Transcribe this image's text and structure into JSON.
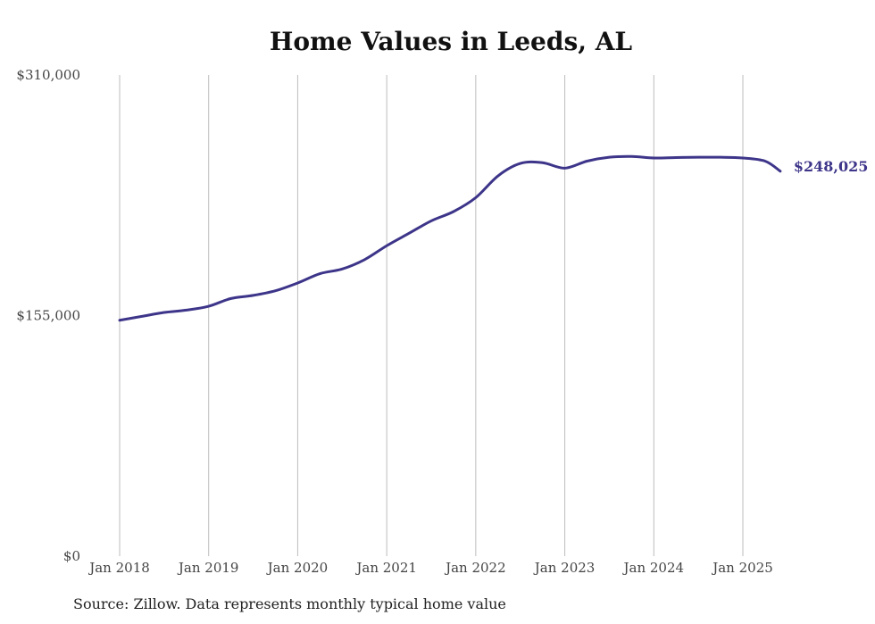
{
  "chart_data": {
    "type": "line",
    "title": "Home Values in Leeds, AL",
    "source": "Source: Zillow. Data represents monthly typical home value",
    "y_ticks": [
      "$0",
      "$155,000",
      "$310,000"
    ],
    "y_tick_values": [
      0,
      155000,
      310000
    ],
    "ylim": [
      0,
      310000
    ],
    "x_ticks": [
      "Jan 2018",
      "Jan 2019",
      "Jan 2020",
      "Jan 2021",
      "Jan 2022",
      "Jan 2023",
      "Jan 2024",
      "Jan 2025"
    ],
    "x_tick_years": [
      2018,
      2019,
      2020,
      2021,
      2022,
      2023,
      2024,
      2025
    ],
    "end_label": "$248,025",
    "series": [
      {
        "color": "#3d3589",
        "x": [
          2018.0,
          2018.25,
          2018.5,
          2018.75,
          2019.0,
          2019.25,
          2019.5,
          2019.75,
          2020.0,
          2020.25,
          2020.5,
          2020.75,
          2021.0,
          2021.25,
          2021.5,
          2021.75,
          2022.0,
          2022.25,
          2022.5,
          2022.75,
          2023.0,
          2023.25,
          2023.5,
          2023.75,
          2024.0,
          2024.25,
          2024.5,
          2024.75,
          2025.0,
          2025.25,
          2025.42
        ],
        "values": [
          152000,
          154500,
          157000,
          158500,
          161000,
          166000,
          168000,
          171000,
          176000,
          182000,
          185000,
          191000,
          200000,
          208000,
          216000,
          222000,
          231000,
          245000,
          253000,
          253500,
          250000,
          254500,
          257000,
          257500,
          256500,
          256800,
          257000,
          257000,
          256500,
          254500,
          248025
        ]
      }
    ]
  }
}
